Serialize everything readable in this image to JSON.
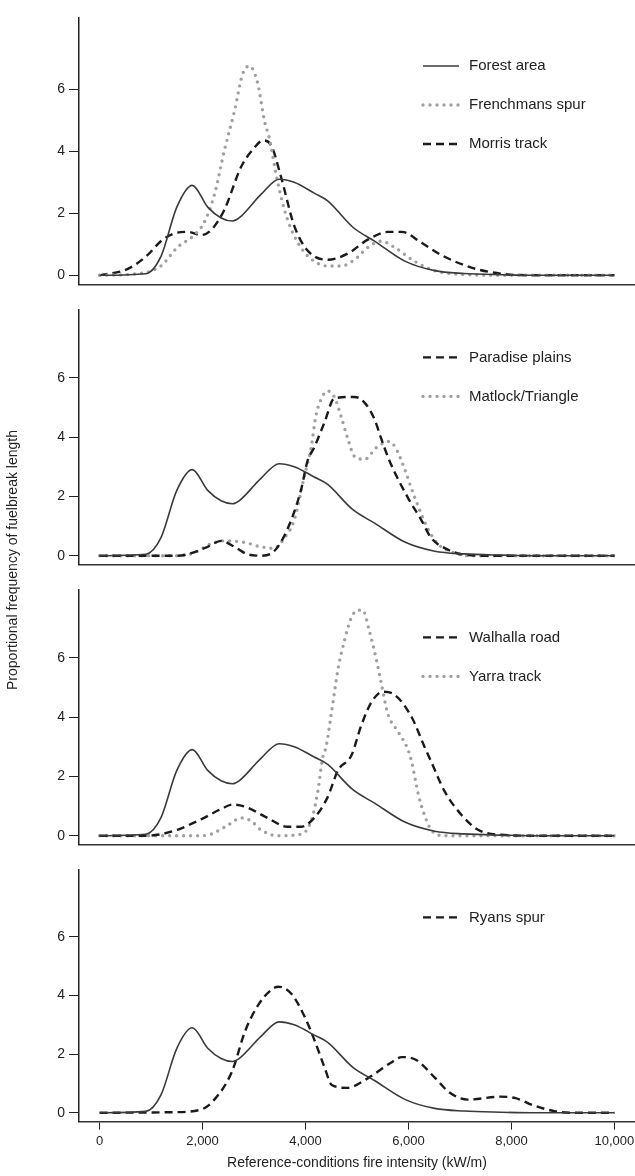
{
  "chart_data": [
    {
      "type": "line",
      "xlim": [
        -400,
        10400
      ],
      "ylim": [
        -0.3,
        8.3
      ],
      "yticks": [
        0,
        2,
        4,
        6
      ],
      "tick_labels": "y",
      "legend": "top right",
      "series": [
        {
          "name": "Forest area",
          "color": "#3a3a3a",
          "line_style": "solid",
          "x": [
            0,
            900,
            1190,
            1500,
            1800,
            2100,
            2360,
            2580,
            2710,
            3130,
            3490,
            3780,
            4170,
            4430,
            4920,
            5340,
            5940,
            6510,
            7080,
            7790,
            8500,
            10000
          ],
          "values": [
            0,
            0.05,
            0.6,
            2.2,
            2.9,
            2.2,
            1.85,
            1.75,
            1.85,
            2.6,
            3.1,
            3,
            2.65,
            2.4,
            1.55,
            1.1,
            0.45,
            0.15,
            0.06,
            0.02,
            0,
            0
          ]
        },
        {
          "name": "Frenchmans spur",
          "color": "#a0a0a0",
          "line_style": "dotted",
          "x": [
            0,
            730,
            1190,
            1510,
            1840,
            2030,
            2230,
            2420,
            2620,
            2780,
            2910,
            3070,
            3200,
            3300,
            3460,
            3650,
            3910,
            4170,
            4430,
            4690,
            4950,
            5210,
            5470,
            5730,
            6120,
            6510,
            7030,
            8000,
            10000
          ],
          "values": [
            0,
            0.05,
            0.3,
            0.9,
            1.3,
            1.7,
            2.6,
            4,
            5.3,
            6.5,
            6.75,
            6.2,
            5,
            4.4,
            3,
            1.8,
            0.9,
            0.45,
            0.3,
            0.3,
            0.5,
            0.9,
            1.1,
            0.9,
            0.45,
            0.15,
            0.03,
            0,
            0
          ]
        },
        {
          "name": "Morris track",
          "color": "#1a1a1a",
          "line_style": "dashed",
          "x": [
            0,
            540,
            930,
            1190,
            1450,
            1710,
            1970,
            2160,
            2420,
            2750,
            3000,
            3170,
            3330,
            3520,
            3780,
            4040,
            4430,
            4820,
            5210,
            5600,
            5870,
            6250,
            6640,
            7220,
            7800,
            8500,
            10000
          ],
          "values": [
            0,
            0.2,
            0.65,
            1.1,
            1.35,
            1.4,
            1.3,
            1.45,
            2.1,
            3.5,
            4.1,
            4.35,
            4.2,
            3.2,
            1.6,
            0.8,
            0.5,
            0.7,
            1.15,
            1.4,
            1.4,
            1.05,
            0.65,
            0.25,
            0.05,
            0,
            0
          ]
        }
      ]
    },
    {
      "type": "line",
      "ylabel": "Proportional frequency of fuelbreak length",
      "xlim": [
        -400,
        10400
      ],
      "ylim": [
        -0.3,
        8.3
      ],
      "yticks": [
        0,
        2,
        4,
        6
      ],
      "tick_labels": "y",
      "legend": "top right",
      "series": [
        {
          "color": "#3a3a3a",
          "line_style": "solid",
          "x": [
            0,
            900,
            1190,
            1500,
            1800,
            2100,
            2360,
            2580,
            2710,
            3130,
            3490,
            3780,
            4170,
            4430,
            4920,
            5340,
            5940,
            6510,
            7080,
            7790,
            8500,
            10000
          ],
          "values": [
            0,
            0.05,
            0.6,
            2.2,
            2.9,
            2.2,
            1.85,
            1.75,
            1.85,
            2.6,
            3.1,
            3,
            2.65,
            2.4,
            1.55,
            1.1,
            0.45,
            0.15,
            0.06,
            0.02,
            0,
            0
          ]
        },
        {
          "name": "Paradise plains",
          "color": "#1a1a1a",
          "line_style": "dashed",
          "x": [
            0,
            1500,
            1710,
            2100,
            2360,
            2620,
            2870,
            3130,
            3390,
            3650,
            3910,
            4040,
            4170,
            4370,
            4560,
            4950,
            5150,
            5340,
            5470,
            5630,
            5990,
            6250,
            6440,
            6770,
            7030,
            7500,
            10000
          ],
          "values": [
            0,
            0,
            0.05,
            0.3,
            0.5,
            0.3,
            0.05,
            0,
            0.15,
            0.9,
            2.2,
            3.2,
            3.65,
            4.5,
            5.3,
            5.35,
            5.15,
            4.6,
            3.95,
            3.2,
            1.95,
            1.2,
            0.6,
            0.2,
            0.05,
            0,
            0
          ]
        },
        {
          "name": "Matlock/Triangle",
          "color": "#a0a0a0",
          "line_style": "dotted",
          "x": [
            0,
            1500,
            1840,
            2160,
            2420,
            2810,
            3130,
            3390,
            3590,
            3780,
            3980,
            4110,
            4200,
            4340,
            4430,
            4560,
            4690,
            4820,
            4950,
            5150,
            5380,
            5630,
            5760,
            5930,
            6060,
            6250,
            6380,
            6570,
            6830,
            7160,
            10000
          ],
          "values": [
            0,
            0,
            0.1,
            0.4,
            0.5,
            0.45,
            0.3,
            0.25,
            0.6,
            1.2,
            2.7,
            3.65,
            4.7,
            5.4,
            5.55,
            5.35,
            4.7,
            3.95,
            3.35,
            3.25,
            3.65,
            3.85,
            3.6,
            2.9,
            2.25,
            1.4,
            0.9,
            0.4,
            0.13,
            0,
            0
          ]
        }
      ]
    },
    {
      "type": "line",
      "xlim": [
        -400,
        10400
      ],
      "ylim": [
        -0.3,
        8.3
      ],
      "yticks": [
        0,
        2,
        4,
        6
      ],
      "tick_labels": "y",
      "legend": "top right",
      "series": [
        {
          "color": "#3a3a3a",
          "line_style": "solid",
          "x": [
            0,
            900,
            1190,
            1500,
            1800,
            2100,
            2360,
            2580,
            2710,
            3130,
            3490,
            3780,
            4170,
            4430,
            4920,
            5340,
            5940,
            6510,
            7080,
            7790,
            8500,
            10000
          ],
          "values": [
            0,
            0.05,
            0.6,
            2.2,
            2.9,
            2.2,
            1.85,
            1.75,
            1.85,
            2.6,
            3.1,
            3,
            2.65,
            2.4,
            1.55,
            1.1,
            0.45,
            0.15,
            0.06,
            0.02,
            0,
            0
          ]
        },
        {
          "name": "Walhalla road",
          "color": "#1a1a1a",
          "line_style": "dashed",
          "x": [
            0,
            900,
            1190,
            1510,
            1970,
            2360,
            2580,
            2870,
            3260,
            3650,
            3910,
            4170,
            4430,
            4630,
            4890,
            5080,
            5280,
            5500,
            5730,
            6060,
            6310,
            6440,
            6700,
            7030,
            7350,
            7800,
            8500,
            10000
          ],
          "values": [
            0,
            0,
            0.05,
            0.2,
            0.55,
            0.9,
            1.05,
            0.95,
            0.6,
            0.3,
            0.3,
            0.6,
            1.3,
            2.2,
            2.7,
            3.7,
            4.5,
            4.85,
            4.75,
            4,
            3,
            2.5,
            1.5,
            0.7,
            0.2,
            0.03,
            0,
            0
          ]
        },
        {
          "name": "Yarra track",
          "color": "#a0a0a0",
          "line_style": "dotted",
          "x": [
            0,
            2000,
            2160,
            2490,
            2750,
            2940,
            3130,
            3460,
            3910,
            4110,
            4240,
            4330,
            4400,
            4500,
            4630,
            4760,
            4890,
            5020,
            5110,
            5240,
            5380,
            5470,
            5600,
            5800,
            5990,
            6060,
            6190,
            6310,
            6440,
            6700,
            10000
          ],
          "values": [
            0,
            0,
            0.05,
            0.35,
            0.6,
            0.5,
            0.2,
            0,
            0.05,
            0.5,
            1.5,
            2.6,
            3,
            4.1,
            5.6,
            6.6,
            7.35,
            7.6,
            7.6,
            6.9,
            5.9,
            5.15,
            4.1,
            3.5,
            2.9,
            2.5,
            1.4,
            0.7,
            0.2,
            0,
            0
          ]
        }
      ]
    },
    {
      "type": "line",
      "xlabel": "Reference-conditions fire intensity (kW/m)",
      "xlim": [
        -400,
        10400
      ],
      "ylim": [
        -0.3,
        8.3
      ],
      "xticks": [
        {
          "value": 0,
          "label": "0"
        },
        {
          "value": 2000,
          "label": "2,000"
        },
        {
          "value": 4000,
          "label": "4,000"
        },
        {
          "value": 6000,
          "label": "6,000"
        },
        {
          "value": 8000,
          "label": "8,000"
        },
        {
          "value": 10000,
          "label": "10,000"
        }
      ],
      "yticks": [
        0,
        2,
        4,
        6
      ],
      "legend": "top right",
      "series": [
        {
          "color": "#3a3a3a",
          "line_style": "solid",
          "x": [
            0,
            900,
            1190,
            1500,
            1800,
            2100,
            2360,
            2580,
            2710,
            3130,
            3490,
            3780,
            4170,
            4430,
            4920,
            5340,
            5940,
            6510,
            7080,
            7790,
            8500,
            10000
          ],
          "values": [
            0,
            0.05,
            0.6,
            2.2,
            2.9,
            2.2,
            1.85,
            1.75,
            1.85,
            2.6,
            3.1,
            3,
            2.65,
            2.4,
            1.55,
            1.1,
            0.45,
            0.15,
            0.06,
            0.02,
            0,
            0
          ]
        },
        {
          "name": "Ryans spur",
          "color": "#1a1a1a",
          "line_style": "dashed",
          "x": [
            0,
            1380,
            1950,
            2230,
            2570,
            2830,
            3090,
            3340,
            3470,
            3730,
            3990,
            4180,
            4370,
            4510,
            4800,
            5230,
            5650,
            5870,
            6150,
            6510,
            6790,
            7150,
            7790,
            8080,
            8430,
            8860,
            9220,
            10000
          ],
          "values": [
            0,
            0.02,
            0.1,
            0.45,
            1.4,
            2.8,
            3.7,
            4.2,
            4.3,
            4.05,
            3.25,
            2.45,
            1.55,
            0.95,
            0.85,
            1.2,
            1.7,
            1.9,
            1.8,
            1.2,
            0.7,
            0.45,
            0.55,
            0.5,
            0.25,
            0.05,
            0,
            0
          ]
        }
      ]
    }
  ]
}
